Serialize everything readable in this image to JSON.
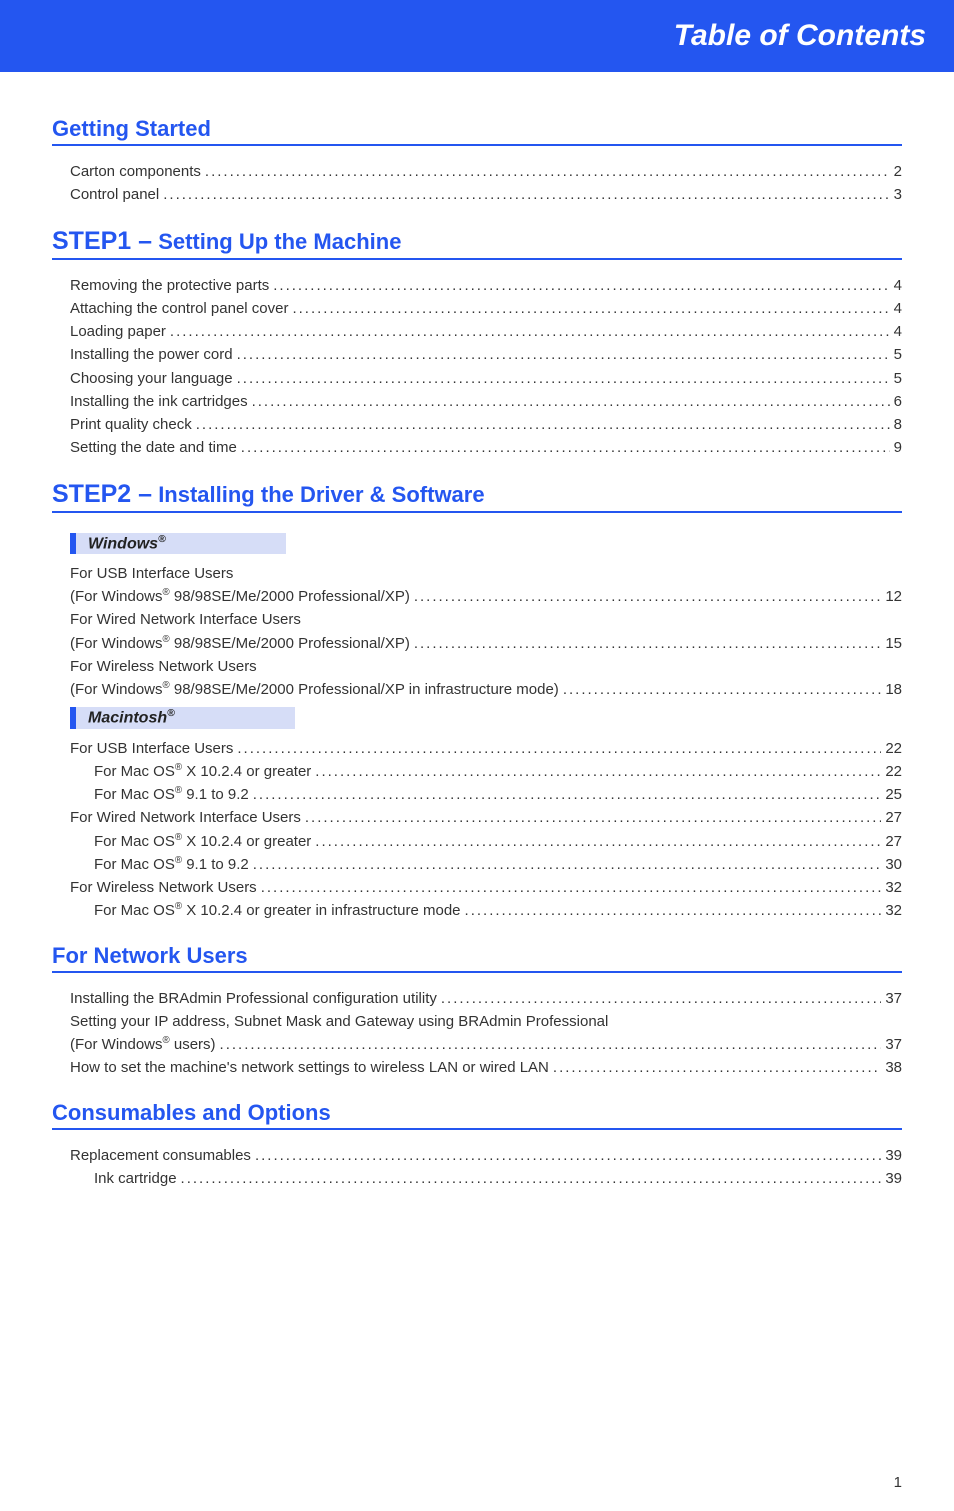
{
  "colors": {
    "banner_bg": "#2456f0",
    "banner_text": "#ffffff",
    "heading_text": "#2456f0",
    "heading_rule": "#2456f0",
    "subhead_bg": "#d6ddf7",
    "subhead_border": "#2456f0",
    "body_text": "#333333",
    "page_bg": "#ffffff"
  },
  "typography": {
    "banner_fontsize": 30,
    "section_fontsize": 22,
    "step_prefix_fontsize": 25,
    "subhead_fontsize": 16,
    "body_fontsize": 15
  },
  "banner": {
    "title": "Table of Contents"
  },
  "page_number": "1",
  "sections": [
    {
      "prefix": "",
      "title": "Getting Started",
      "entries": [
        {
          "label": "Carton components",
          "page": "2"
        },
        {
          "label": "Control panel",
          "page": "3"
        }
      ]
    },
    {
      "prefix": "STEP1 –",
      "title": "Setting Up the Machine",
      "entries": [
        {
          "label": "Removing the protective parts",
          "page": "4"
        },
        {
          "label": "Attaching the control panel cover",
          "page": "4"
        },
        {
          "label": "Loading paper",
          "page": "4"
        },
        {
          "label": "Installing the power cord",
          "page": "5"
        },
        {
          "label": "Choosing your language",
          "page": "5"
        },
        {
          "label": "Installing the ink cartridges",
          "page": "6"
        },
        {
          "label": "Print quality check",
          "page": "8"
        },
        {
          "label": "Setting the date and time",
          "page": "9"
        }
      ]
    },
    {
      "prefix": "STEP2 –",
      "title": "Installing the Driver & Software",
      "subgroups": [
        {
          "subtitle_html": "Windows<sup class=\"reg\">®</sup>",
          "entries": [
            {
              "label_prefix": "For USB Interface Users",
              "label_html": "(For Windows<sup class=\"reg\">®</sup> 98/98SE/Me/2000 Professional/XP)",
              "page": "12"
            },
            {
              "label_prefix": "For Wired Network Interface Users",
              "label_html": "(For Windows<sup class=\"reg\">®</sup> 98/98SE/Me/2000 Professional/XP)",
              "page": "15"
            },
            {
              "label_prefix": "For Wireless Network Users",
              "label_html": "(For Windows<sup class=\"reg\">®</sup> 98/98SE/Me/2000 Professional/XP in infrastructure mode)",
              "page": "18"
            }
          ]
        },
        {
          "subtitle_html": "Macintosh<sup class=\"reg\">®</sup>",
          "entries": [
            {
              "label": "For USB Interface Users",
              "page": "22"
            },
            {
              "label_html": "For Mac OS<sup class=\"reg\">®</sup> X 10.2.4 or greater",
              "page": "22",
              "indent": 1
            },
            {
              "label_html": "For Mac OS<sup class=\"reg\">®</sup> 9.1 to 9.2",
              "page": "25",
              "indent": 1
            },
            {
              "label": "For Wired Network Interface Users",
              "page": "27"
            },
            {
              "label_html": "For Mac OS<sup class=\"reg\">®</sup> X 10.2.4 or greater",
              "page": "27",
              "indent": 1
            },
            {
              "label_html": "For Mac OS<sup class=\"reg\">®</sup> 9.1 to 9.2",
              "page": "30",
              "indent": 1
            },
            {
              "label": "For Wireless Network Users",
              "page": "32"
            },
            {
              "label_html": "For Mac OS<sup class=\"reg\">®</sup> X 10.2.4 or greater in infrastructure mode",
              "page": "32",
              "indent": 1
            }
          ]
        }
      ]
    },
    {
      "prefix": "",
      "title": "For Network Users",
      "entries": [
        {
          "label": "Installing the BRAdmin Professional configuration utility",
          "page": "37"
        },
        {
          "label_prefix": "Setting your IP address, Subnet Mask and Gateway using BRAdmin Professional",
          "label_html": "(For Windows<sup class=\"reg\">®</sup> users)",
          "page": "37"
        },
        {
          "label": "How to set the machine's network settings to wireless LAN or wired LAN",
          "page": "38"
        }
      ]
    },
    {
      "prefix": "",
      "title": "Consumables and Options",
      "entries": [
        {
          "label": "Replacement consumables",
          "page": "39"
        },
        {
          "label": "Ink cartridge",
          "page": "39",
          "indent": 1
        }
      ]
    }
  ]
}
